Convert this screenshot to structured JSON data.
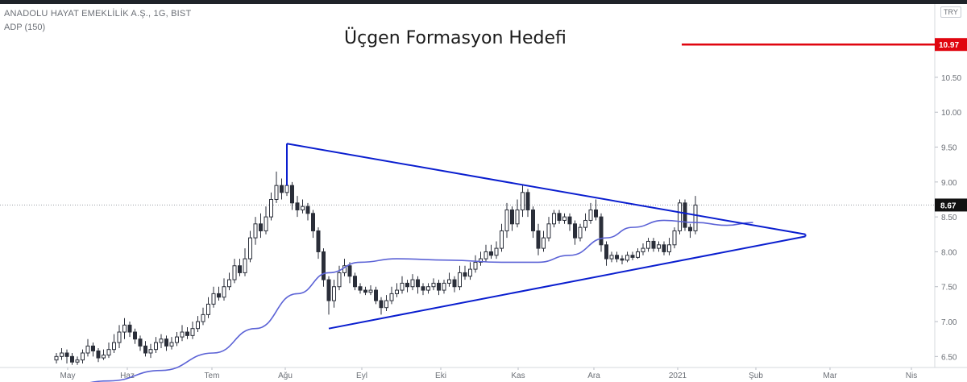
{
  "header": {
    "symbol": "ANADOLU HAYAT EMEKLİLİK A.Ş., 1G, BIST",
    "indicator": "ADP (150)",
    "currency": "TRY"
  },
  "annotation": {
    "title": "Üçgen Formasyon Hedefi"
  },
  "colors": {
    "triangle": "#0a1ecf",
    "target": "#e0050f",
    "ma": "#5c63d6",
    "candle": "#2a2e39",
    "lastPrice": "#111111"
  },
  "chart_data": {
    "type": "candlestick",
    "title": "",
    "xlabel": "",
    "ylabel": "",
    "x_ticks": [
      "May",
      "Haz",
      "Tem",
      "Ağu",
      "Eyl",
      "Eki",
      "Kas",
      "Ara",
      "2021",
      "Şub",
      "Mar",
      "Nis"
    ],
    "y_ticks": [
      "6.50",
      "7.00",
      "7.50",
      "8.00",
      "8.50",
      "9.00",
      "9.50",
      "10.00",
      "10.50"
    ],
    "ylim": [
      6.4,
      11.55
    ],
    "grid": false,
    "target_label": "10.97",
    "target_price": 10.97,
    "last_label": "8.67",
    "last_price": 8.67,
    "candles": [
      [
        6.45,
        6.5,
        6.55,
        6.4
      ],
      [
        6.5,
        6.55,
        6.62,
        6.45
      ],
      [
        6.55,
        6.5,
        6.6,
        6.4
      ],
      [
        6.5,
        6.42,
        6.55,
        6.38
      ],
      [
        6.42,
        6.45,
        6.5,
        6.38
      ],
      [
        6.45,
        6.55,
        6.6,
        6.4
      ],
      [
        6.55,
        6.65,
        6.75,
        6.5
      ],
      [
        6.65,
        6.58,
        6.7,
        6.5
      ],
      [
        6.58,
        6.48,
        6.62,
        6.42
      ],
      [
        6.48,
        6.52,
        6.6,
        6.45
      ],
      [
        6.52,
        6.6,
        6.7,
        6.48
      ],
      [
        6.6,
        6.7,
        6.82,
        6.55
      ],
      [
        6.7,
        6.85,
        6.95,
        6.62
      ],
      [
        6.85,
        6.95,
        7.05,
        6.75
      ],
      [
        6.95,
        6.85,
        7.0,
        6.78
      ],
      [
        6.85,
        6.75,
        6.9,
        6.68
      ],
      [
        6.75,
        6.65,
        6.8,
        6.58
      ],
      [
        6.65,
        6.55,
        6.72,
        6.5
      ],
      [
        6.55,
        6.6,
        6.68,
        6.48
      ],
      [
        6.6,
        6.7,
        6.78,
        6.55
      ],
      [
        6.7,
        6.75,
        6.82,
        6.62
      ],
      [
        6.75,
        6.65,
        6.8,
        6.58
      ],
      [
        6.65,
        6.7,
        6.78,
        6.6
      ],
      [
        6.7,
        6.78,
        6.85,
        6.65
      ],
      [
        6.78,
        6.85,
        6.95,
        6.72
      ],
      [
        6.85,
        6.8,
        6.92,
        6.75
      ],
      [
        6.8,
        6.9,
        7.0,
        6.75
      ],
      [
        6.9,
        7.0,
        7.08,
        6.85
      ],
      [
        7.0,
        7.1,
        7.2,
        6.95
      ],
      [
        7.1,
        7.25,
        7.35,
        7.05
      ],
      [
        7.25,
        7.4,
        7.5,
        7.2
      ],
      [
        7.4,
        7.35,
        7.5,
        7.3
      ],
      [
        7.35,
        7.5,
        7.62,
        7.3
      ],
      [
        7.5,
        7.6,
        7.7,
        7.45
      ],
      [
        7.6,
        7.8,
        7.9,
        7.55
      ],
      [
        7.8,
        7.7,
        7.9,
        7.65
      ],
      [
        7.7,
        7.9,
        8.05,
        7.65
      ],
      [
        7.9,
        8.2,
        8.3,
        7.85
      ],
      [
        8.2,
        8.4,
        8.5,
        8.1
      ],
      [
        8.4,
        8.3,
        8.55,
        8.2
      ],
      [
        8.3,
        8.5,
        8.65,
        8.25
      ],
      [
        8.5,
        8.75,
        8.85,
        8.45
      ],
      [
        8.75,
        8.95,
        9.15,
        8.7
      ],
      [
        8.95,
        8.85,
        9.05,
        8.75
      ],
      [
        8.85,
        8.95,
        9.55,
        8.8
      ],
      [
        8.95,
        8.7,
        9.0,
        8.6
      ],
      [
        8.7,
        8.6,
        8.8,
        8.5
      ],
      [
        8.6,
        8.65,
        8.75,
        8.55
      ],
      [
        8.65,
        8.55,
        8.7,
        8.45
      ],
      [
        8.55,
        8.3,
        8.6,
        8.2
      ],
      [
        8.3,
        8.0,
        8.35,
        7.9
      ],
      [
        8.0,
        7.6,
        8.05,
        7.5
      ],
      [
        7.6,
        7.3,
        7.65,
        7.1
      ],
      [
        7.3,
        7.5,
        7.6,
        7.2
      ],
      [
        7.5,
        7.7,
        7.8,
        7.45
      ],
      [
        7.7,
        7.8,
        7.9,
        7.65
      ],
      [
        7.8,
        7.65,
        7.85,
        7.55
      ],
      [
        7.65,
        7.5,
        7.7,
        7.45
      ],
      [
        7.5,
        7.45,
        7.55,
        7.4
      ],
      [
        7.45,
        7.42,
        7.5,
        7.38
      ],
      [
        7.42,
        7.45,
        7.52,
        7.38
      ],
      [
        7.45,
        7.3,
        7.5,
        7.25
      ],
      [
        7.3,
        7.2,
        7.35,
        7.1
      ],
      [
        7.2,
        7.3,
        7.38,
        7.15
      ],
      [
        7.3,
        7.4,
        7.5,
        7.25
      ],
      [
        7.4,
        7.45,
        7.55,
        7.35
      ],
      [
        7.45,
        7.55,
        7.65,
        7.4
      ],
      [
        7.55,
        7.5,
        7.6,
        7.42
      ],
      [
        7.5,
        7.6,
        7.68,
        7.45
      ],
      [
        7.6,
        7.5,
        7.65,
        7.4
      ],
      [
        7.5,
        7.45,
        7.55,
        7.38
      ],
      [
        7.45,
        7.5,
        7.55,
        7.4
      ],
      [
        7.5,
        7.55,
        7.62,
        7.45
      ],
      [
        7.55,
        7.45,
        7.6,
        7.38
      ],
      [
        7.45,
        7.55,
        7.6,
        7.4
      ],
      [
        7.55,
        7.6,
        7.7,
        7.5
      ],
      [
        7.6,
        7.5,
        7.65,
        7.42
      ],
      [
        7.5,
        7.7,
        7.8,
        7.45
      ],
      [
        7.7,
        7.65,
        7.8,
        7.6
      ],
      [
        7.65,
        7.75,
        7.85,
        7.6
      ],
      [
        7.75,
        7.85,
        7.95,
        7.7
      ],
      [
        7.85,
        7.9,
        8.0,
        7.8
      ],
      [
        7.9,
        8.0,
        8.1,
        7.85
      ],
      [
        8.0,
        7.95,
        8.1,
        7.9
      ],
      [
        7.95,
        8.05,
        8.15,
        7.9
      ],
      [
        8.05,
        8.3,
        8.4,
        8.0
      ],
      [
        8.3,
        8.6,
        8.7,
        8.2
      ],
      [
        8.6,
        8.4,
        8.65,
        8.3
      ],
      [
        8.4,
        8.6,
        8.75,
        8.35
      ],
      [
        8.6,
        8.85,
        8.95,
        8.5
      ],
      [
        8.85,
        8.6,
        8.9,
        8.5
      ],
      [
        8.6,
        8.3,
        8.65,
        8.2
      ],
      [
        8.3,
        8.05,
        8.4,
        7.95
      ],
      [
        8.05,
        8.2,
        8.3,
        8.0
      ],
      [
        8.2,
        8.4,
        8.5,
        8.15
      ],
      [
        8.4,
        8.55,
        8.6,
        8.35
      ],
      [
        8.55,
        8.45,
        8.6,
        8.4
      ],
      [
        8.45,
        8.5,
        8.55,
        8.4
      ],
      [
        8.5,
        8.4,
        8.55,
        8.3
      ],
      [
        8.4,
        8.2,
        8.45,
        8.1
      ],
      [
        8.2,
        8.35,
        8.4,
        8.15
      ],
      [
        8.35,
        8.45,
        8.55,
        8.3
      ],
      [
        8.45,
        8.6,
        8.7,
        8.4
      ],
      [
        8.6,
        8.5,
        8.75,
        8.45
      ],
      [
        8.5,
        8.1,
        8.55,
        8.0
      ],
      [
        8.1,
        7.9,
        8.15,
        7.8
      ],
      [
        7.9,
        7.95,
        8.0,
        7.85
      ],
      [
        7.95,
        7.9,
        8.0,
        7.85
      ],
      [
        7.9,
        7.88,
        7.95,
        7.82
      ],
      [
        7.88,
        7.95,
        8.0,
        7.85
      ],
      [
        7.95,
        7.92,
        8.0,
        7.88
      ],
      [
        7.92,
        8.0,
        8.05,
        7.9
      ],
      [
        8.0,
        8.05,
        8.12,
        7.95
      ],
      [
        8.05,
        8.15,
        8.2,
        8.0
      ],
      [
        8.15,
        8.05,
        8.2,
        8.0
      ],
      [
        8.05,
        8.1,
        8.15,
        8.0
      ],
      [
        8.1,
        8.0,
        8.15,
        7.95
      ],
      [
        8.0,
        8.1,
        8.2,
        7.95
      ],
      [
        8.1,
        8.3,
        8.35,
        8.05
      ],
      [
        8.3,
        8.7,
        8.75,
        8.25
      ],
      [
        8.7,
        8.35,
        8.75,
        8.3
      ],
      [
        8.35,
        8.3,
        8.4,
        8.2
      ],
      [
        8.3,
        8.67,
        8.8,
        8.25
      ]
    ],
    "ma_label": "ADP (150)",
    "ma": [
      [
        0,
        6.05
      ],
      [
        10,
        6.15
      ],
      [
        20,
        6.3
      ],
      [
        30,
        6.55
      ],
      [
        38,
        6.9
      ],
      [
        46,
        7.4
      ],
      [
        52,
        7.7
      ],
      [
        58,
        7.85
      ],
      [
        65,
        7.9
      ],
      [
        75,
        7.88
      ],
      [
        85,
        7.85
      ],
      [
        92,
        7.85
      ],
      [
        98,
        7.95
      ],
      [
        105,
        8.2
      ],
      [
        110,
        8.35
      ],
      [
        116,
        8.45
      ],
      [
        122,
        8.42
      ],
      [
        128,
        8.38
      ],
      [
        133,
        8.42
      ]
    ],
    "triangle": {
      "upper": [
        [
          44,
          9.55
        ],
        [
          143,
          8.25
        ]
      ],
      "lower": [
        [
          52,
          6.9
        ],
        [
          143,
          8.22
        ]
      ]
    }
  }
}
